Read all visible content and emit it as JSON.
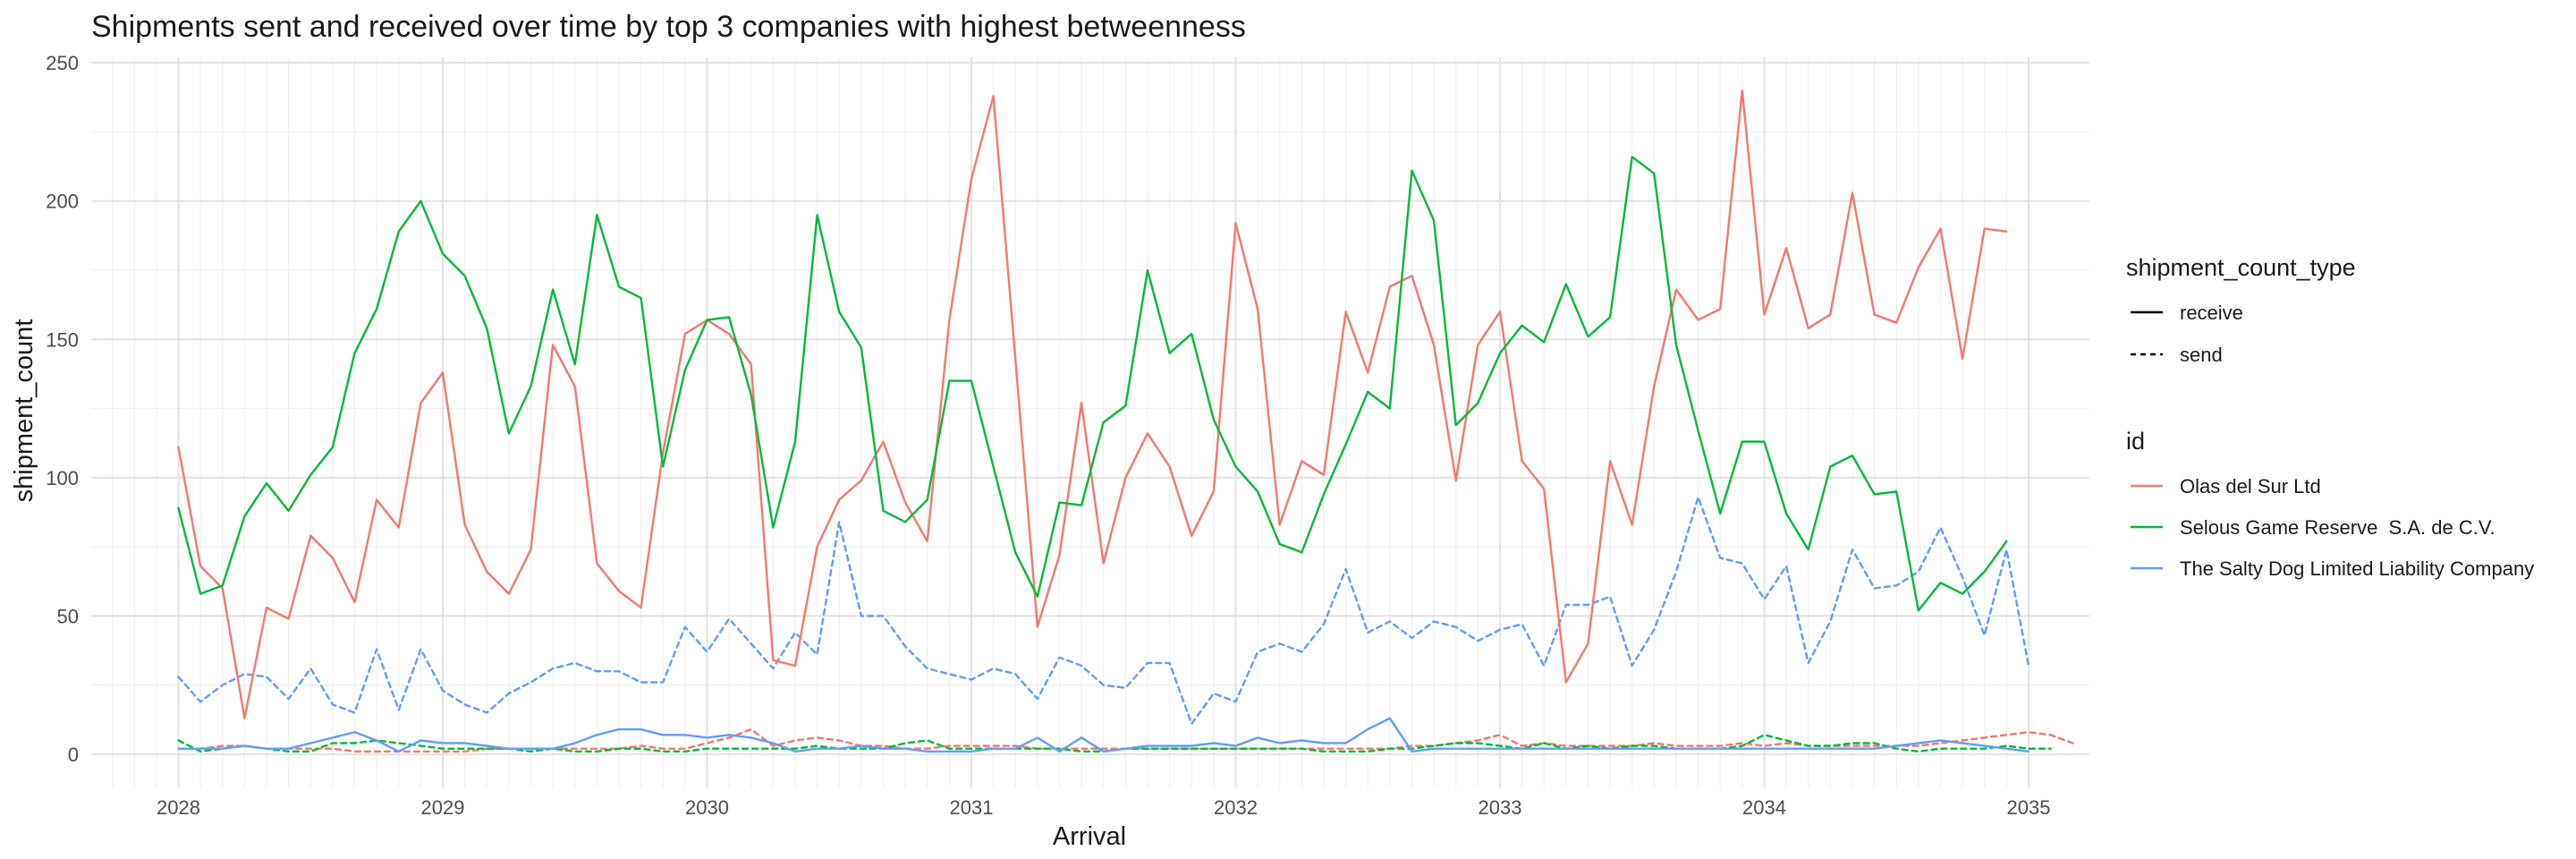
{
  "chart_data": {
    "type": "line",
    "title": "Shipments sent and received over time by top 3 companies with highest betweenness",
    "xlabel": "Arrival",
    "ylabel": "shipment_count",
    "xlim": [
      2027.67,
      2035.23
    ],
    "ylim": [
      -12,
      252
    ],
    "x_ticks": [
      2028,
      2029,
      2030,
      2031,
      2032,
      2033,
      2034,
      2035
    ],
    "x_tick_labels": [
      "2028",
      "2029",
      "2030",
      "2031",
      "2032",
      "2033",
      "2034",
      "2035"
    ],
    "y_ticks": [
      0,
      50,
      100,
      150,
      200,
      250
    ],
    "y_tick_labels": [
      "0",
      "50",
      "100",
      "150",
      "200",
      "250"
    ],
    "grid": true,
    "legend_placement": "right",
    "x_start": 2028.0,
    "x_step": 0.08333,
    "legend": {
      "linetype_title": "shipment_count_type",
      "linetypes": [
        {
          "label": "receive",
          "style": "solid"
        },
        {
          "label": "send",
          "style": "dashed"
        }
      ],
      "color_title": "id",
      "colors": [
        {
          "label": "Olas del Sur Ltd",
          "color": "#F8766D"
        },
        {
          "label": "Selous Game Reserve  S.A. de C.V.",
          "color": "#00BA38"
        },
        {
          "label": "The Salty Dog Limited Liability Company",
          "color": "#619CFF"
        }
      ]
    },
    "series": [
      {
        "id": "Olas del Sur Ltd",
        "type": "receive",
        "color": "#F8766D",
        "style": "solid",
        "values": [
          111,
          68,
          60,
          13,
          53,
          49,
          79,
          71,
          55,
          92,
          82,
          127,
          138,
          83,
          66,
          58,
          74,
          148,
          133,
          69,
          59,
          53,
          109,
          152,
          157,
          152,
          141,
          34,
          32,
          75,
          92,
          99,
          113,
          91,
          77,
          157,
          208,
          238,
          143,
          46,
          72,
          127,
          69,
          100,
          116,
          104,
          79,
          95,
          192,
          161,
          83,
          106,
          101,
          160,
          138,
          169,
          173,
          148,
          99,
          148,
          160,
          106,
          96,
          26,
          40,
          106,
          83,
          133,
          168,
          157,
          161,
          240,
          159,
          183,
          154,
          159,
          203,
          159,
          156,
          176,
          190,
          143,
          190,
          189
        ]
      },
      {
        "id": "Selous Game Reserve  S.A. de C.V.",
        "type": "receive",
        "color": "#00BA38",
        "style": "solid",
        "values": [
          89,
          58,
          61,
          86,
          98,
          88,
          101,
          111,
          145,
          161,
          189,
          200,
          181,
          173,
          154,
          116,
          133,
          168,
          141,
          195,
          169,
          165,
          104,
          139,
          157,
          158,
          130,
          82,
          113,
          195,
          160,
          147,
          88,
          84,
          92,
          135,
          135,
          104,
          73,
          57,
          91,
          90,
          120,
          126,
          175,
          145,
          152,
          121,
          104,
          95,
          76,
          73,
          94,
          112,
          131,
          125,
          211,
          193,
          119,
          127,
          145,
          155,
          149,
          170,
          151,
          158,
          216,
          210,
          148,
          117,
          87,
          113,
          113,
          87,
          74,
          104,
          108,
          94,
          95,
          52,
          62,
          58,
          66,
          77
        ]
      },
      {
        "id": "The Salty Dog Limited Liability Company",
        "type": "receive",
        "color": "#619CFF",
        "style": "solid",
        "values": [
          2,
          2,
          2,
          3,
          2,
          2,
          4,
          6,
          8,
          5,
          1,
          5,
          4,
          4,
          3,
          2,
          2,
          2,
          4,
          7,
          9,
          9,
          7,
          7,
          6,
          7,
          6,
          4,
          1,
          2,
          2,
          3,
          2,
          2,
          1,
          1,
          1,
          2,
          2,
          6,
          1,
          6,
          1,
          2,
          3,
          3,
          3,
          4,
          3,
          6,
          4,
          5,
          4,
          4,
          9,
          13,
          1,
          2,
          2,
          2,
          2,
          2,
          2,
          2,
          2,
          2,
          2,
          2,
          2,
          2,
          2,
          2,
          2,
          2,
          2,
          2,
          2,
          2,
          3,
          4,
          5,
          4,
          3,
          2,
          1
        ]
      },
      {
        "id": "Olas del Sur Ltd",
        "type": "send",
        "color": "#F8766D",
        "style": "dashed",
        "values": [
          2,
          2,
          3,
          3,
          2,
          2,
          2,
          2,
          1,
          1,
          1,
          1,
          1,
          1,
          2,
          2,
          2,
          2,
          2,
          2,
          2,
          3,
          2,
          2,
          4,
          6,
          9,
          3,
          5,
          6,
          5,
          3,
          3,
          2,
          2,
          3,
          3,
          3,
          3,
          2,
          2,
          2,
          2,
          2,
          2,
          2,
          2,
          2,
          2,
          2,
          2,
          2,
          2,
          2,
          2,
          2,
          3,
          3,
          4,
          5,
          7,
          3,
          4,
          3,
          3,
          3,
          3,
          4,
          3,
          3,
          3,
          4,
          3,
          4,
          3,
          3,
          3,
          3,
          3,
          3,
          4,
          5,
          6,
          7,
          8,
          7,
          4
        ]
      },
      {
        "id": "Selous Game Reserve  S.A. de C.V.",
        "type": "send",
        "color": "#00BA38",
        "style": "dashed",
        "values": [
          5,
          1,
          2,
          3,
          2,
          1,
          1,
          4,
          4,
          5,
          4,
          3,
          2,
          2,
          2,
          2,
          1,
          2,
          1,
          1,
          2,
          2,
          1,
          1,
          2,
          2,
          2,
          2,
          2,
          3,
          2,
          2,
          2,
          4,
          5,
          2,
          2,
          2,
          2,
          2,
          2,
          1,
          1,
          2,
          2,
          2,
          2,
          2,
          2,
          2,
          2,
          2,
          1,
          1,
          1,
          2,
          2,
          3,
          4,
          4,
          3,
          2,
          4,
          2,
          3,
          2,
          3,
          3,
          2,
          2,
          2,
          3,
          7,
          5,
          3,
          3,
          4,
          4,
          2,
          1,
          2,
          2,
          2,
          3,
          2,
          2
        ]
      },
      {
        "id": "The Salty Dog Limited Liability Company",
        "type": "send",
        "color": "#619CFF",
        "style": "dashed",
        "values": [
          28,
          19,
          25,
          29,
          28,
          20,
          31,
          18,
          15,
          38,
          16,
          38,
          23,
          18,
          15,
          22,
          26,
          31,
          33,
          30,
          30,
          26,
          26,
          46,
          37,
          49,
          40,
          31,
          44,
          36,
          84,
          50,
          50,
          39,
          31,
          29,
          27,
          31,
          29,
          20,
          35,
          32,
          25,
          24,
          33,
          33,
          11,
          22,
          19,
          37,
          40,
          37,
          47,
          67,
          44,
          48,
          42,
          48,
          46,
          41,
          45,
          47,
          32,
          54,
          54,
          57,
          32,
          45,
          66,
          93,
          71,
          69,
          56,
          68,
          33,
          48,
          74,
          60,
          61,
          66,
          82,
          64,
          43,
          74,
          32
        ]
      }
    ]
  }
}
